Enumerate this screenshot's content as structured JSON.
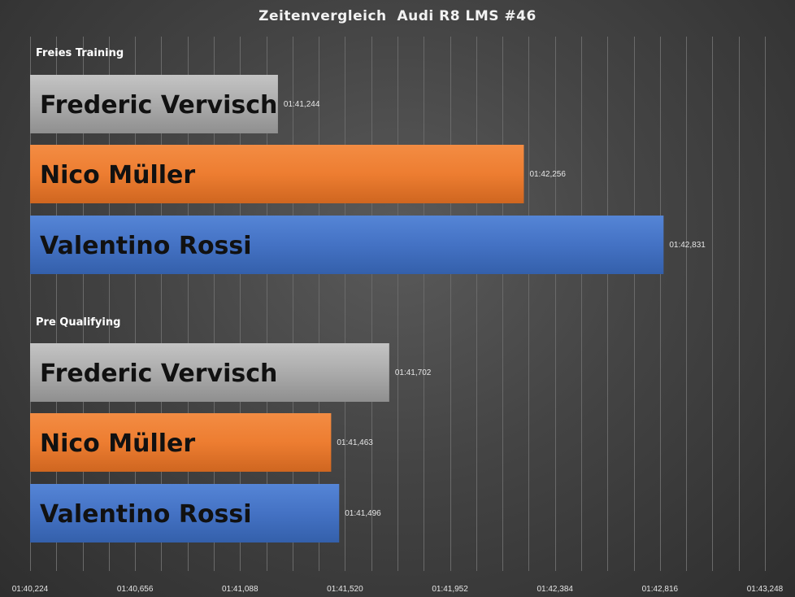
{
  "chart_data": {
    "type": "bar",
    "orientation": "horizontal",
    "title": "Zeitenvergleich  Audi R8 LMS #46",
    "xlim": [
      100.224,
      103.248
    ],
    "x_ticks": [
      100.224,
      100.656,
      101.088,
      101.52,
      101.952,
      102.384,
      102.816,
      103.248
    ],
    "x_tick_labels": [
      "01:40,224",
      "01:40,656",
      "01:41,088",
      "01:41,520",
      "01:41,952",
      "01:42,384",
      "01:42,816",
      "01:43,248"
    ],
    "grid": true,
    "groups": [
      {
        "label": "Freies Training",
        "bars": [
          {
            "name": "Frederic Vervisch",
            "value": 101.244,
            "label": "01:41,244",
            "color": "#a6a6a6"
          },
          {
            "name": "Nico Müller",
            "value": 102.256,
            "label": "01:42,256",
            "color": "#ed7d31"
          },
          {
            "name": "Valentino Rossi",
            "value": 102.831,
            "label": "01:42,831",
            "color": "#4472c4"
          }
        ]
      },
      {
        "label": "Pre Qualifying",
        "bars": [
          {
            "name": "Frederic Vervisch",
            "value": 101.702,
            "label": "01:41,702",
            "color": "#a6a6a6"
          },
          {
            "name": "Nico Müller",
            "value": 101.463,
            "label": "01:41,463",
            "color": "#ed7d31"
          },
          {
            "name": "Valentino Rossi",
            "value": 101.496,
            "label": "01:41,496",
            "color": "#4472c4"
          }
        ]
      }
    ]
  }
}
